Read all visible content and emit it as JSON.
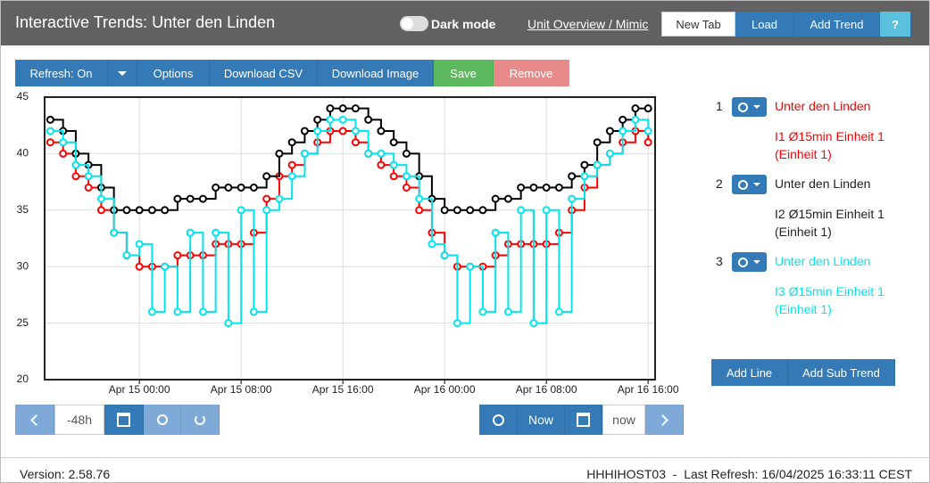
{
  "header": {
    "title": "Interactive Trends: Unter den Linden",
    "dark_mode": "Dark mode",
    "link": "Unit Overview / Mimic",
    "buttons": [
      "New Tab",
      "Load",
      "Add Trend",
      "?"
    ]
  },
  "toolbar": {
    "buttons": [
      "Refresh: On",
      "Options",
      "Download CSV",
      "Download Image",
      "Save",
      "Remove"
    ]
  },
  "chart_data": {
    "type": "step-line",
    "x": [
      "Apr 14 17:00",
      "Apr 14 18:00",
      "Apr 14 19:00",
      "Apr 14 20:00",
      "Apr 14 21:00",
      "Apr 14 22:00",
      "Apr 14 23:00",
      "Apr 15 00:00",
      "Apr 15 01:00",
      "Apr 15 02:00",
      "Apr 15 03:00",
      "Apr 15 04:00",
      "Apr 15 05:00",
      "Apr 15 06:00",
      "Apr 15 07:00",
      "Apr 15 08:00",
      "Apr 15 09:00",
      "Apr 15 10:00",
      "Apr 15 11:00",
      "Apr 15 12:00",
      "Apr 15 13:00",
      "Apr 15 14:00",
      "Apr 15 15:00",
      "Apr 15 16:00",
      "Apr 15 17:00",
      "Apr 15 18:00",
      "Apr 15 19:00",
      "Apr 15 20:00",
      "Apr 15 21:00",
      "Apr 15 22:00",
      "Apr 15 23:00",
      "Apr 16 00:00",
      "Apr 16 01:00",
      "Apr 16 02:00",
      "Apr 16 03:00",
      "Apr 16 04:00",
      "Apr 16 05:00",
      "Apr 16 06:00",
      "Apr 16 07:00",
      "Apr 16 08:00",
      "Apr 16 09:00",
      "Apr 16 10:00",
      "Apr 16 11:00",
      "Apr 16 12:00",
      "Apr 16 13:00",
      "Apr 16 14:00",
      "Apr 16 15:00",
      "Apr 16 16:00"
    ],
    "series": [
      {
        "name": "Unter den Linden",
        "color": "#ff0000",
        "values": [
          41,
          40,
          38,
          37,
          35,
          33,
          31,
          30,
          30,
          30,
          31,
          31,
          31,
          32,
          32,
          32,
          33,
          36,
          38,
          39,
          40,
          41,
          42,
          42,
          41,
          40,
          39,
          38,
          37,
          35,
          33,
          31,
          30,
          30,
          30,
          31,
          32,
          32,
          32,
          32,
          33,
          35,
          37,
          39,
          40,
          41,
          42,
          41
        ]
      },
      {
        "name": "Unter den Linden",
        "color": "#000000",
        "values": [
          43,
          42,
          40,
          39,
          37,
          35,
          35,
          35,
          35,
          35,
          36,
          36,
          36,
          37,
          37,
          37,
          37,
          38,
          40,
          41,
          42,
          43,
          44,
          44,
          44,
          43,
          42,
          41,
          40,
          38,
          36,
          35,
          35,
          35,
          35,
          36,
          36,
          37,
          37,
          37,
          37,
          38,
          39,
          41,
          42,
          43,
          44,
          44
        ]
      },
      {
        "name": "Unter den Linden",
        "color": "#00e5ee",
        "values": [
          42,
          41,
          39,
          38,
          36,
          33,
          31,
          32,
          26,
          30,
          26,
          33,
          26,
          33,
          25,
          35,
          26,
          35,
          36,
          38,
          40,
          42,
          43,
          43,
          42,
          40,
          40,
          39,
          38,
          36,
          32,
          31,
          25,
          30,
          26,
          33,
          26,
          35,
          25,
          35,
          26,
          36,
          38,
          39,
          40,
          42,
          43,
          42
        ]
      }
    ],
    "xlim": [
      "Apr 14 16:33",
      "Apr 16 16:33"
    ],
    "xticks": [
      "Apr 15 00:00",
      "Apr 15 08:00",
      "Apr 15 16:00",
      "Apr 16 00:00",
      "Apr 16 08:00",
      "Apr 16 16:00"
    ],
    "ylim": [
      20,
      45
    ],
    "yticks": [
      20,
      25,
      30,
      35,
      40,
      45
    ],
    "grid": true
  },
  "legend": [
    {
      "index": 1,
      "label": "I1 Ø15min Einheit 1 (Einheit 1)"
    },
    {
      "index": 2,
      "label": "I2 Ø15min Einheit 1 (Einheit 1)"
    },
    {
      "index": 3,
      "label": "I3 Ø15min Einheit 1 (Einheit 1)"
    }
  ],
  "legend_buttons": [
    "Add Line",
    "Add Sub Trend"
  ],
  "navigation": {
    "range": "-48h",
    "now_button": "Now",
    "end": "now"
  },
  "footer": {
    "version": "Version: 2.58.76",
    "status": "HHHIHOST03  -  Last Refresh: 16/04/2025 16:33:11 CEST"
  }
}
